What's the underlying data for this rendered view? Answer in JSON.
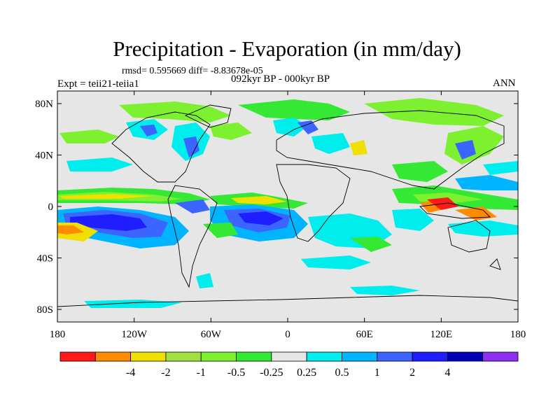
{
  "title": "Precipitation - Evaporation (in mm/day)",
  "stats": "rmsd= 0.595669 diff= -8.83678e-05",
  "experiment": "Expt = teii21-teiia1",
  "period": "092kyr BP - 000kyr BP",
  "season": "ANN",
  "map": {
    "x_ticks": [
      "180",
      "120W",
      "60W",
      "0",
      "60E",
      "120E",
      "180"
    ],
    "y_ticks": [
      "80N",
      "40N",
      "0",
      "40S",
      "80S"
    ]
  },
  "colorbar": {
    "labels": [
      "-4",
      "-2",
      "-1",
      "-0.5",
      "-0.25",
      "0.25",
      "0.5",
      "1",
      "2",
      "4"
    ],
    "colors": [
      "#ff1a1a",
      "#ff8c00",
      "#f0e000",
      "#a0e040",
      "#7df030",
      "#34e834",
      "#e6e6e6",
      "#00eded",
      "#00b4ff",
      "#3c64ff",
      "#1e1eff",
      "#0000b4",
      "#8c30f0"
    ]
  }
}
